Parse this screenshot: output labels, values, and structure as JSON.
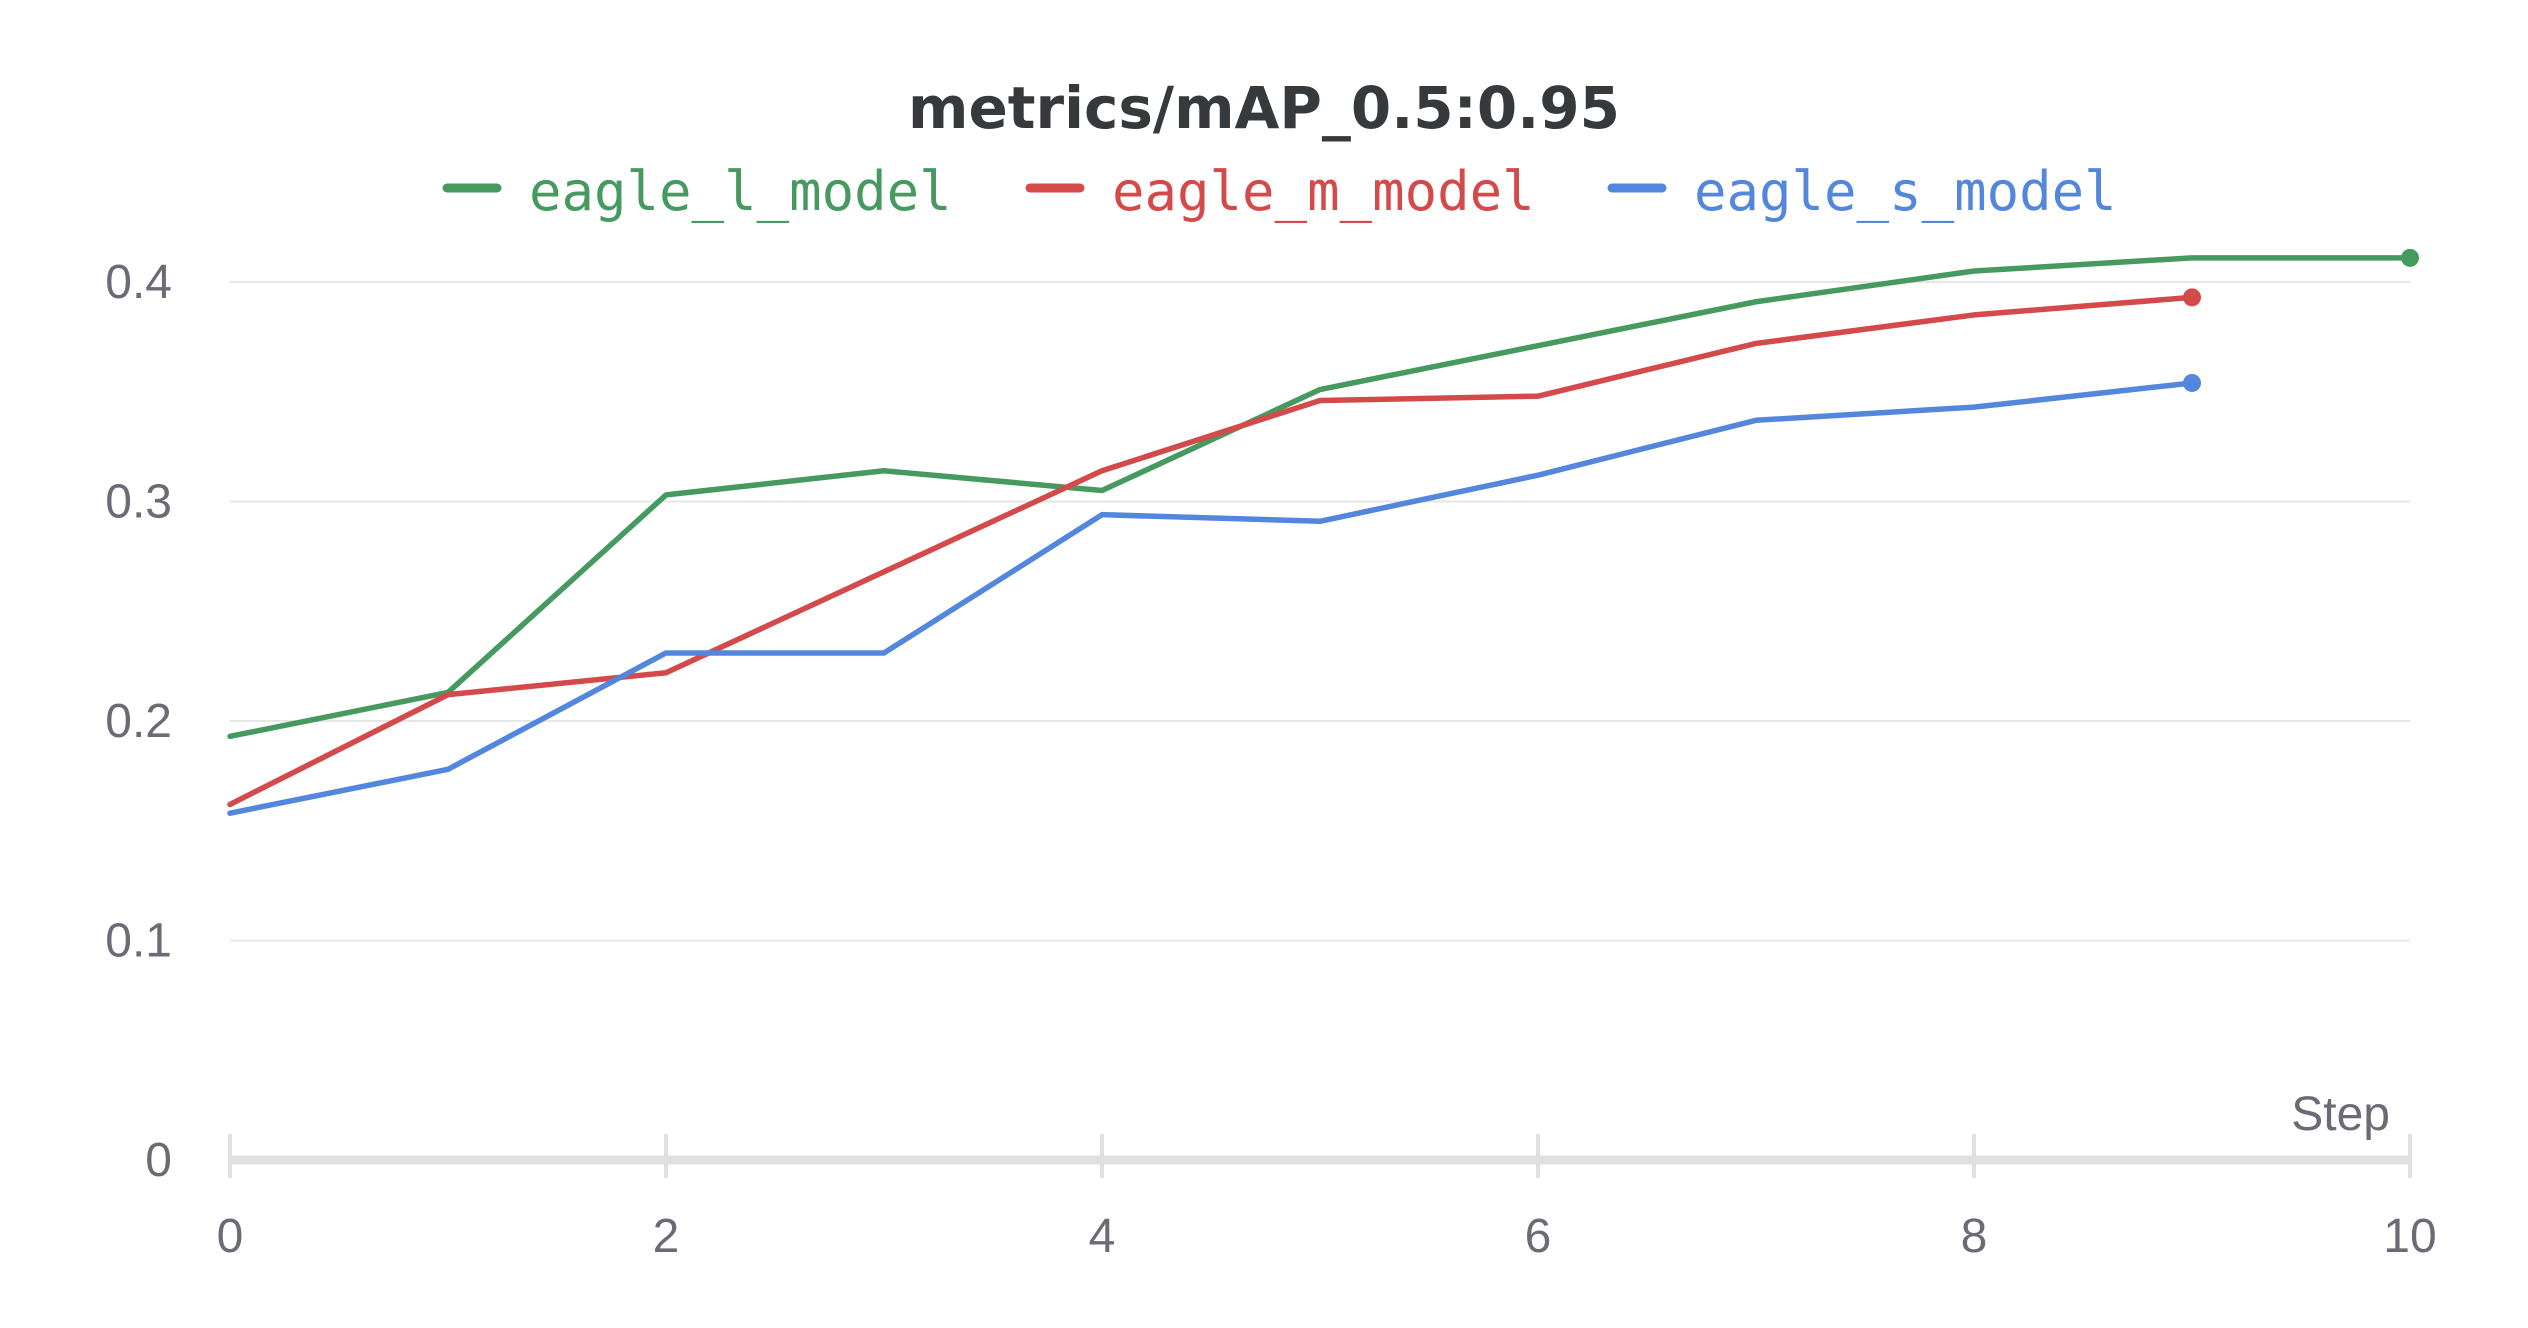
{
  "chart_data": {
    "type": "line",
    "title": "metrics/mAP_0.5:0.95",
    "xlabel": "Step",
    "ylabel": "",
    "xlim": [
      0,
      10
    ],
    "ylim": [
      0,
      0.4
    ],
    "x_ticks": [
      "0",
      "2",
      "4",
      "6",
      "8",
      "10"
    ],
    "y_ticks": [
      "0",
      "0.1",
      "0.2",
      "0.3",
      "0.4"
    ],
    "grid": true,
    "legend_position": "top",
    "series": [
      {
        "name": "eagle_l_model",
        "color": "#479a5f",
        "x": [
          0,
          1,
          2,
          3,
          4,
          5,
          6,
          7,
          8,
          9,
          10
        ],
        "values": [
          0.193,
          0.213,
          0.303,
          0.314,
          0.305,
          0.351,
          0.371,
          0.391,
          0.405,
          0.411,
          0.411
        ]
      },
      {
        "name": "eagle_m_model",
        "color": "#d44a4a",
        "x": [
          0,
          1,
          2,
          3,
          4,
          5,
          6,
          7,
          8,
          9
        ],
        "values": [
          0.162,
          0.212,
          0.222,
          0.268,
          0.314,
          0.346,
          0.348,
          0.372,
          0.385,
          0.393
        ]
      },
      {
        "name": "eagle_s_model",
        "color": "#5387dd",
        "x": [
          0,
          1,
          2,
          3,
          4,
          5,
          6,
          7,
          8,
          9
        ],
        "values": [
          0.158,
          0.178,
          0.231,
          0.231,
          0.294,
          0.291,
          0.312,
          0.337,
          0.343,
          0.354
        ]
      }
    ]
  }
}
